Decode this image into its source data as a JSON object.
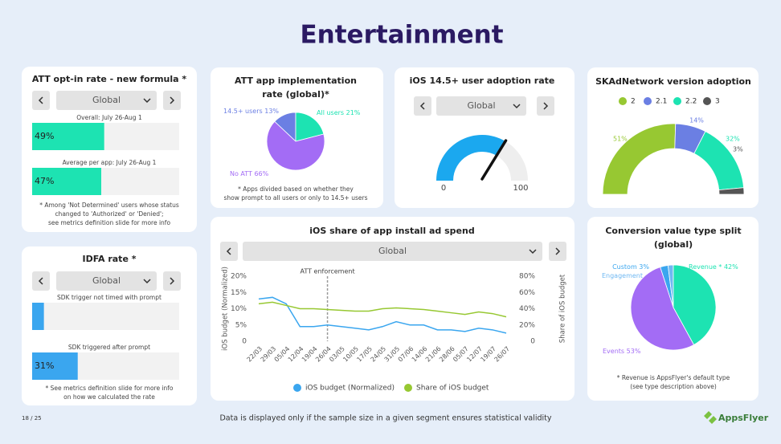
{
  "title": "Entertainment",
  "footer": {
    "page": "18 / 25",
    "note": "Data is displayed only if the sample size in a given segment ensures statistical validity",
    "logo": "AppsFlyer"
  },
  "chart_data": [
    {
      "type": "bar",
      "title": "ATT opt-in rate - new formula *",
      "dropdown": "Global",
      "categories": [
        "Overall: July 26-Aug 1",
        "Average per app: July 26-Aug 1"
      ],
      "values": [
        49,
        47
      ],
      "value_labels": [
        "49%",
        "47%"
      ],
      "xlim": [
        0,
        100
      ],
      "color": "#1de3b2",
      "note": [
        "* Among 'Not Determined' users whose status",
        "changed to 'Authorized' or 'Denied';",
        "see metrics definition slide for more info"
      ]
    },
    {
      "type": "bar",
      "title": "IDFA rate *",
      "dropdown": "Global",
      "categories": [
        "SDK trigger not timed with prompt",
        "SDK triggered after prompt"
      ],
      "values": [
        8,
        31
      ],
      "value_labels": [
        null,
        "31%"
      ],
      "xlim": [
        0,
        100
      ],
      "color": "#3aa6ef",
      "note": [
        "* See metrics definition slide for more info",
        "on how we calculated the rate"
      ]
    },
    {
      "type": "pie",
      "title": [
        "ATT app implementation",
        "rate (global)*"
      ],
      "categories": [
        "14.5+ users",
        "All users",
        "No ATT"
      ],
      "values": [
        13,
        21,
        66
      ],
      "value_labels": [
        "13%",
        "21%",
        "66%"
      ],
      "colors": [
        "#6b7fe3",
        "#1de3b2",
        "#a36cf5"
      ],
      "note": [
        "* Apps divided based on whether they",
        "show prompt to all users or only to 14.5+ users"
      ]
    },
    {
      "type": "gauge",
      "title": "iOS 14.5+ user adoption rate",
      "dropdown": "Global",
      "value": 67,
      "xlim": [
        0,
        100
      ],
      "xticks": [
        0,
        100
      ],
      "color": "#1ba8ef"
    },
    {
      "type": "half-donut",
      "title": "SKAdNetwork version adoption",
      "categories": [
        "2",
        "2.1",
        "2.2",
        "3"
      ],
      "values": [
        51,
        14,
        32,
        3
      ],
      "value_labels": [
        "51%",
        "14%",
        "32%",
        "3%"
      ],
      "colors": [
        "#97c832",
        "#6b7fe3",
        "#1de3b2",
        "#555555"
      ]
    },
    {
      "type": "line",
      "title": "iOS share of app install ad spend",
      "dropdown": "Global",
      "categories": [
        "22/03",
        "29/03",
        "05/04",
        "12/04",
        "19/04",
        "26/04",
        "03/05",
        "10/05",
        "17/05",
        "24/05",
        "31/05",
        "07/06",
        "14/06",
        "21/06",
        "28/06",
        "05/07",
        "12/07",
        "19/07",
        "26/07"
      ],
      "series": [
        {
          "name": "iOS budget (Normalized)",
          "color": "#3aa6ef",
          "values": [
            13,
            13.5,
            11.5,
            4.5,
            4.5,
            5,
            4.5,
            4,
            3.5,
            4.5,
            6,
            5,
            5,
            3.5,
            3.5,
            3,
            4,
            3.5,
            2.5
          ]
        },
        {
          "name": "Share of iOS budget",
          "color": "#97c832",
          "axis": "y2",
          "values": [
            46,
            48,
            44,
            40,
            40,
            39,
            38,
            37,
            37,
            40,
            41,
            40,
            39,
            37,
            35,
            33,
            36,
            34,
            30
          ]
        }
      ],
      "ylabel": "iOS budget (Normalized)",
      "y2label": "Share of iOS budget",
      "ylim": [
        0,
        20
      ],
      "yticks": [
        0,
        {
          "value": 5,
          "label": "5%"
        },
        {
          "value": 10,
          "label": "10%"
        },
        {
          "value": 15,
          "label": "15%"
        },
        {
          "value": 20,
          "label": "20%"
        }
      ],
      "y2lim": [
        0,
        80
      ],
      "y2ticks": [
        0,
        {
          "value": 20,
          "label": "20%"
        },
        {
          "value": 40,
          "label": "40%"
        },
        {
          "value": 60,
          "label": "60%"
        },
        {
          "value": 80,
          "label": "80%"
        }
      ],
      "annotation": {
        "text": "ATT enforcement",
        "category": "26/04"
      }
    },
    {
      "type": "pie",
      "title": [
        "Conversion value type split",
        "(global)"
      ],
      "categories": [
        "Custom",
        "Engagement",
        "Revenue *",
        "Events"
      ],
      "values": [
        3,
        2,
        42,
        53
      ],
      "value_labels": [
        "3%",
        null,
        "42%",
        "53%"
      ],
      "colors": [
        "#3aa6ef",
        "#6fb8f2",
        "#1de3b2",
        "#a36cf5"
      ],
      "note": [
        "* Revenue is AppsFlyer's default type",
        "(see type description above)"
      ]
    }
  ]
}
